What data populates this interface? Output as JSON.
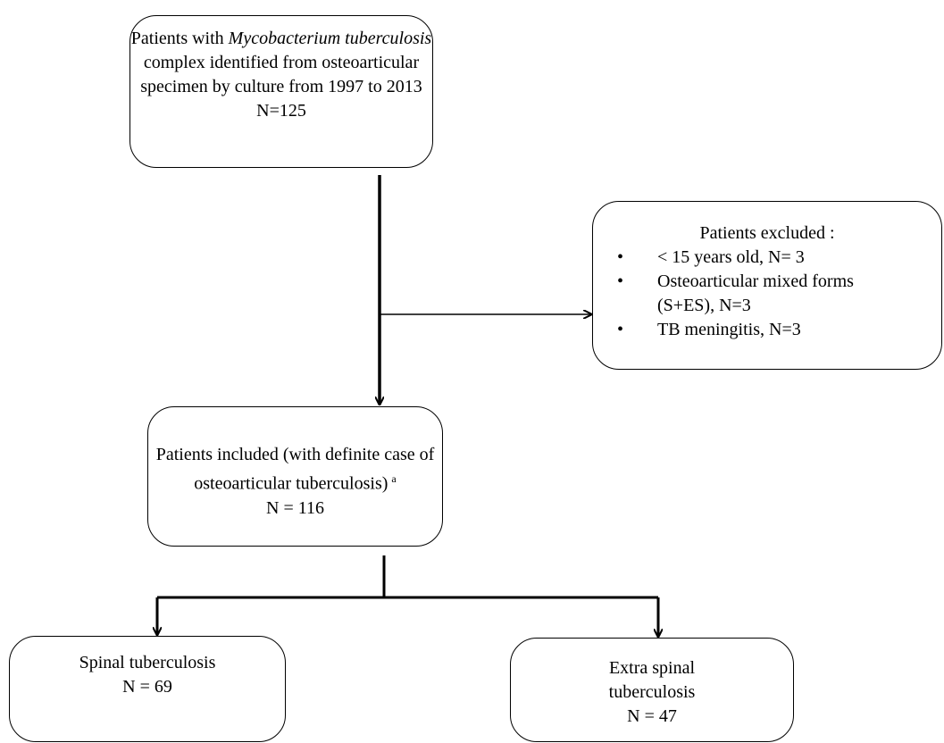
{
  "nodes": [
    {
      "first_line": [
        "Patients with",
        "Mycobacterium tuberculosis"
      ],
      "lines": [
        "complex identified from osteoarticular",
        "specimen by culture from 1997 to 2013",
        "N=125"
      ]
    },
    {
      "heading": "Patients excluded :",
      "bullets": [
        "< 15 years old, N= 3",
        "Osteoarticular mixed forms (S+ES), N=3",
        "TB meningitis, N=3"
      ]
    },
    {
      "lines": [
        "Patients included (with definite case of",
        "osteoarticular tuberculosis)",
        "N = 116"
      ],
      "superscript": "a"
    },
    {
      "lines": [
        "Spinal tuberculosis",
        "N = 69"
      ]
    },
    {
      "lines": [
        "Extra spinal",
        "tuberculosis",
        "N = 47"
      ]
    }
  ]
}
